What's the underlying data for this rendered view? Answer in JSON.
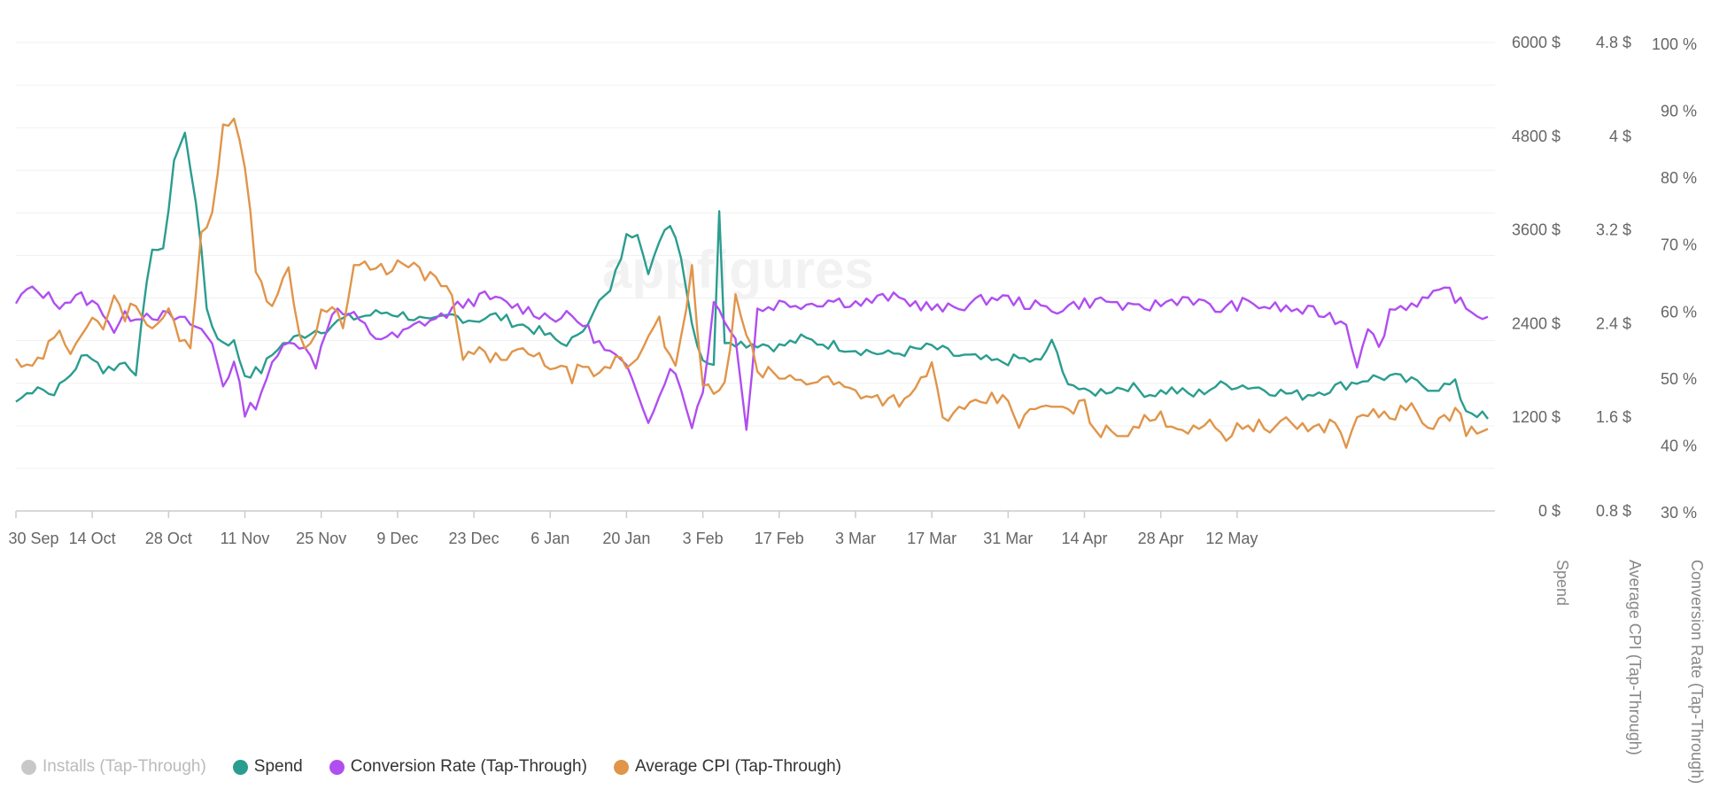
{
  "chart_data": {
    "type": "line",
    "title": "",
    "watermark": "appfigures",
    "x_tick_labels": [
      "30 Sep",
      "14 Oct",
      "28 Oct",
      "11 Nov",
      "25 Nov",
      "9 Dec",
      "23 Dec",
      "6 Jan",
      "20 Jan",
      "3 Feb",
      "17 Feb",
      "3 Mar",
      "17 Mar",
      "31 Mar",
      "14 Apr",
      "28 Apr",
      "12 May"
    ],
    "x_tick_start": "2023-09-30",
    "x_tick_interval_days": 14,
    "y_axes": [
      {
        "id": "spend",
        "title": "Spend",
        "ticks": [
          "6000 $",
          "4800 $",
          "3600 $",
          "2400 $",
          "1200 $",
          "0 $"
        ],
        "min": 0,
        "max": 6000
      },
      {
        "id": "cpi",
        "title": "Average CPI (Tap-Through)",
        "ticks": [
          "4.8 $",
          "4 $",
          "3.2 $",
          "2.4 $",
          "1.6 $",
          "0.8 $"
        ],
        "min": 0.8,
        "max": 4.8
      },
      {
        "id": "cr",
        "title": "Conversion Rate (Tap-Through)",
        "ticks": [
          "100 %",
          "90 %",
          "80 %",
          "70 %",
          "60 %",
          "50 %",
          "40 %",
          "30 %"
        ],
        "min": 30,
        "max": 100
      }
    ],
    "grid": true,
    "legend_position": "bottom-left",
    "series": [
      {
        "name": "Installs (Tap-Through)",
        "color": "#c8c8c8",
        "hidden": true,
        "axis": "spend",
        "values": []
      },
      {
        "name": "Spend",
        "color": "#2a9d8f",
        "axis": "spend",
        "values": []
      },
      {
        "name": "Conversion Rate (Tap-Through)",
        "color": "#b04ef0",
        "axis": "cr",
        "values": []
      },
      {
        "name": "Average CPI (Tap-Through)",
        "color": "#e0954a",
        "axis": "cpi",
        "values": []
      }
    ],
    "spend_keypoints": [
      [
        0,
        1400
      ],
      [
        2,
        1500
      ],
      [
        4,
        1620
      ],
      [
        6,
        1500
      ],
      [
        8,
        1580
      ],
      [
        10,
        1750
      ],
      [
        12,
        1950
      ],
      [
        14,
        2000
      ],
      [
        16,
        1800
      ],
      [
        18,
        1850
      ],
      [
        20,
        1900
      ],
      [
        22,
        1800
      ],
      [
        25,
        3400
      ],
      [
        27,
        3300
      ],
      [
        29,
        4500
      ],
      [
        31,
        4820
      ],
      [
        33,
        4000
      ],
      [
        35,
        2600
      ],
      [
        37,
        2200
      ],
      [
        40,
        2150
      ],
      [
        42,
        1750
      ],
      [
        45,
        1800
      ],
      [
        48,
        2100
      ],
      [
        51,
        2200
      ],
      [
        54,
        2300
      ],
      [
        57,
        2350
      ],
      [
        60,
        2450
      ],
      [
        64,
        2500
      ],
      [
        68,
        2550
      ],
      [
        72,
        2500
      ],
      [
        76,
        2400
      ],
      [
        80,
        2500
      ],
      [
        84,
        2450
      ],
      [
        88,
        2500
      ],
      [
        92,
        2400
      ],
      [
        96,
        2300
      ],
      [
        100,
        2150
      ],
      [
        103,
        2200
      ],
      [
        106,
        2600
      ],
      [
        109,
        2800
      ],
      [
        112,
        3500
      ],
      [
        114,
        3600
      ],
      [
        116,
        3100
      ],
      [
        118,
        3400
      ],
      [
        120,
        3700
      ],
      [
        122,
        3300
      ],
      [
        124,
        2400
      ],
      [
        126,
        1950
      ],
      [
        128,
        1900
      ],
      [
        129,
        3800
      ],
      [
        130,
        2200
      ],
      [
        131,
        2200
      ],
      [
        133,
        2150
      ],
      [
        136,
        2150
      ],
      [
        140,
        2100
      ],
      [
        144,
        2200
      ],
      [
        148,
        2150
      ],
      [
        152,
        2100
      ],
      [
        156,
        2050
      ],
      [
        160,
        2000
      ],
      [
        164,
        2050
      ],
      [
        168,
        2100
      ],
      [
        172,
        2000
      ],
      [
        176,
        1950
      ],
      [
        180,
        1900
      ],
      [
        184,
        1950
      ],
      [
        188,
        1900
      ],
      [
        190,
        2200
      ],
      [
        192,
        1750
      ],
      [
        196,
        1500
      ],
      [
        200,
        1550
      ],
      [
        204,
        1600
      ],
      [
        208,
        1500
      ],
      [
        212,
        1550
      ],
      [
        216,
        1480
      ],
      [
        220,
        1600
      ],
      [
        224,
        1620
      ],
      [
        228,
        1580
      ],
      [
        232,
        1520
      ],
      [
        236,
        1480
      ],
      [
        240,
        1550
      ],
      [
        244,
        1620
      ],
      [
        248,
        1700
      ],
      [
        252,
        1720
      ],
      [
        256,
        1650
      ],
      [
        260,
        1580
      ],
      [
        264,
        1620
      ],
      [
        266,
        1300
      ],
      [
        268,
        1250
      ],
      [
        270,
        1180
      ]
    ],
    "cr_keypoints": [
      [
        0,
        61
      ],
      [
        2,
        63
      ],
      [
        5,
        62.5
      ],
      [
        8,
        61
      ],
      [
        12,
        62
      ],
      [
        16,
        60
      ],
      [
        18,
        57
      ],
      [
        20,
        59
      ],
      [
        24,
        59.5
      ],
      [
        28,
        59
      ],
      [
        32,
        58
      ],
      [
        34,
        57
      ],
      [
        36,
        55
      ],
      [
        38,
        49
      ],
      [
        40,
        52
      ],
      [
        42,
        45
      ],
      [
        44,
        46
      ],
      [
        46,
        50
      ],
      [
        48,
        53
      ],
      [
        50,
        56
      ],
      [
        52,
        55
      ],
      [
        55,
        52
      ],
      [
        58,
        60
      ],
      [
        62,
        59
      ],
      [
        66,
        56
      ],
      [
        70,
        56
      ],
      [
        74,
        58
      ],
      [
        78,
        59
      ],
      [
        82,
        61
      ],
      [
        86,
        62
      ],
      [
        90,
        61
      ],
      [
        94,
        60
      ],
      [
        98,
        59
      ],
      [
        102,
        59
      ],
      [
        104,
        58
      ],
      [
        106,
        56
      ],
      [
        108,
        54
      ],
      [
        110,
        53
      ],
      [
        112,
        51
      ],
      [
        114,
        48
      ],
      [
        116,
        44
      ],
      [
        118,
        47
      ],
      [
        120,
        52
      ],
      [
        122,
        48
      ],
      [
        124,
        43
      ],
      [
        126,
        48
      ],
      [
        128,
        61
      ],
      [
        130,
        59
      ],
      [
        132,
        56
      ],
      [
        134,
        42
      ],
      [
        136,
        60
      ],
      [
        140,
        61
      ],
      [
        145,
        61
      ],
      [
        150,
        61.5
      ],
      [
        155,
        61
      ],
      [
        160,
        62
      ],
      [
        165,
        61
      ],
      [
        170,
        60
      ],
      [
        175,
        61
      ],
      [
        180,
        62
      ],
      [
        185,
        61
      ],
      [
        190,
        60
      ],
      [
        195,
        61
      ],
      [
        200,
        61.5
      ],
      [
        205,
        60
      ],
      [
        210,
        61
      ],
      [
        215,
        62
      ],
      [
        220,
        60
      ],
      [
        225,
        61
      ],
      [
        230,
        60.5
      ],
      [
        235,
        60
      ],
      [
        240,
        59.5
      ],
      [
        244,
        58
      ],
      [
        246,
        52
      ],
      [
        248,
        58
      ],
      [
        250,
        54
      ],
      [
        252,
        60
      ],
      [
        256,
        61
      ],
      [
        260,
        62
      ],
      [
        263,
        63
      ],
      [
        266,
        60
      ],
      [
        268,
        59.5
      ],
      [
        270,
        59
      ]
    ],
    "cpi_keypoints": [
      [
        0,
        2.1
      ],
      [
        2,
        2.0
      ],
      [
        4,
        2.05
      ],
      [
        6,
        2.2
      ],
      [
        8,
        2.3
      ],
      [
        10,
        2.2
      ],
      [
        12,
        2.35
      ],
      [
        14,
        2.45
      ],
      [
        16,
        2.3
      ],
      [
        18,
        2.7
      ],
      [
        20,
        2.45
      ],
      [
        22,
        2.6
      ],
      [
        24,
        2.35
      ],
      [
        26,
        2.4
      ],
      [
        28,
        2.5
      ],
      [
        30,
        2.3
      ],
      [
        32,
        2.2
      ],
      [
        34,
        3.2
      ],
      [
        36,
        3.3
      ],
      [
        38,
        4.1
      ],
      [
        40,
        4.2
      ],
      [
        42,
        3.7
      ],
      [
        44,
        2.9
      ],
      [
        46,
        2.6
      ],
      [
        48,
        2.6
      ],
      [
        50,
        2.9
      ],
      [
        52,
        2.3
      ],
      [
        54,
        2.2
      ],
      [
        56,
        2.5
      ],
      [
        58,
        2.6
      ],
      [
        60,
        2.35
      ],
      [
        62,
        2.9
      ],
      [
        66,
        2.85
      ],
      [
        70,
        2.9
      ],
      [
        74,
        2.85
      ],
      [
        78,
        2.75
      ],
      [
        80,
        2.6
      ],
      [
        82,
        2.1
      ],
      [
        84,
        2.15
      ],
      [
        88,
        2.1
      ],
      [
        92,
        2.15
      ],
      [
        96,
        2.1
      ],
      [
        100,
        2.0
      ],
      [
        102,
        1.95
      ],
      [
        104,
        2.05
      ],
      [
        106,
        1.9
      ],
      [
        108,
        2.0
      ],
      [
        110,
        2.1
      ],
      [
        112,
        2.05
      ],
      [
        114,
        2.1
      ],
      [
        116,
        2.3
      ],
      [
        118,
        2.5
      ],
      [
        119,
        2.25
      ],
      [
        121,
        2.0
      ],
      [
        123,
        2.5
      ],
      [
        124,
        2.85
      ],
      [
        126,
        1.9
      ],
      [
        128,
        1.8
      ],
      [
        130,
        1.85
      ],
      [
        132,
        2.6
      ],
      [
        134,
        2.3
      ],
      [
        136,
        2.0
      ],
      [
        140,
        1.95
      ],
      [
        144,
        1.9
      ],
      [
        148,
        1.95
      ],
      [
        152,
        1.85
      ],
      [
        156,
        1.8
      ],
      [
        160,
        1.75
      ],
      [
        164,
        1.75
      ],
      [
        166,
        1.9
      ],
      [
        168,
        2.05
      ],
      [
        170,
        1.6
      ],
      [
        174,
        1.65
      ],
      [
        178,
        1.75
      ],
      [
        182,
        1.75
      ],
      [
        184,
        1.55
      ],
      [
        188,
        1.7
      ],
      [
        192,
        1.65
      ],
      [
        196,
        1.7
      ],
      [
        198,
        1.5
      ],
      [
        202,
        1.45
      ],
      [
        206,
        1.55
      ],
      [
        210,
        1.6
      ],
      [
        214,
        1.5
      ],
      [
        218,
        1.55
      ],
      [
        222,
        1.45
      ],
      [
        226,
        1.55
      ],
      [
        230,
        1.5
      ],
      [
        234,
        1.55
      ],
      [
        238,
        1.5
      ],
      [
        242,
        1.55
      ],
      [
        244,
        1.4
      ],
      [
        246,
        1.55
      ],
      [
        248,
        1.65
      ],
      [
        252,
        1.6
      ],
      [
        256,
        1.7
      ],
      [
        258,
        1.5
      ],
      [
        260,
        1.55
      ],
      [
        264,
        1.65
      ],
      [
        266,
        1.5
      ],
      [
        268,
        1.45
      ],
      [
        270,
        1.5
      ]
    ]
  }
}
